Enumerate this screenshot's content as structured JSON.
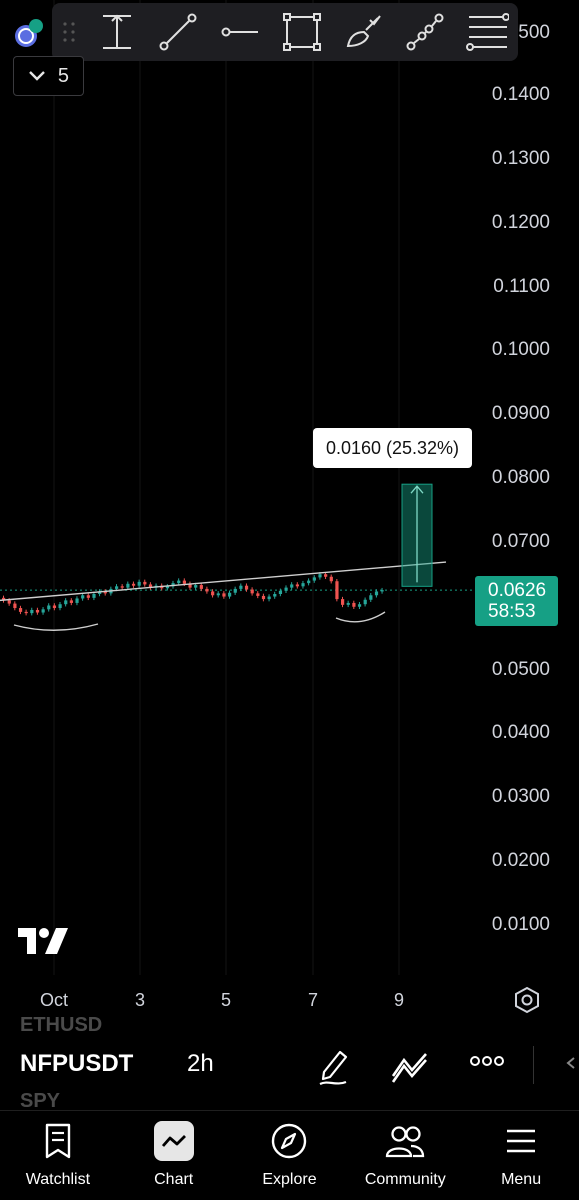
{
  "toolbar": {
    "tools": [
      "measure-tool-icon",
      "trend-line-icon",
      "horizontal-ray-icon",
      "rectangle-icon",
      "brush-icon",
      "path-tool-icon",
      "fib-retracement-icon"
    ]
  },
  "indicators": {
    "count": "5"
  },
  "price_axis": {
    "top_partial": "500",
    "labels": [
      "0.1400",
      "0.1300",
      "0.1200",
      "0.1100",
      "0.1000",
      "0.0900",
      "0.0800",
      "0.0700",
      "0.0500",
      "0.0400",
      "0.0300",
      "0.0200",
      "0.0100"
    ]
  },
  "current_price": {
    "value": "0.0626",
    "countdown": "58:53",
    "color": "#16a085"
  },
  "measure": {
    "label": "0.0160 (25.32%)"
  },
  "time_axis": {
    "labels": [
      "Oct",
      "3",
      "5",
      "7",
      "9"
    ]
  },
  "symbol_bar": {
    "prev_symbol": "ETHUSD",
    "symbol": "NFPUSDT",
    "interval": "2h",
    "next_symbol": "SPY"
  },
  "nav": {
    "items": [
      {
        "label": "Watchlist",
        "icon": "watchlist-icon"
      },
      {
        "label": "Chart",
        "icon": "chart-icon"
      },
      {
        "label": "Explore",
        "icon": "compass-icon"
      },
      {
        "label": "Community",
        "icon": "community-icon"
      },
      {
        "label": "Menu",
        "icon": "menu-icon"
      }
    ]
  },
  "colors": {
    "up": "#26a69a",
    "down": "#ef5350",
    "background": "#000000"
  },
  "chart_data": {
    "type": "candlestick",
    "symbol": "NFPUSDT",
    "interval": "2h",
    "x_ticks": [
      "Oct",
      "3",
      "5",
      "7",
      "9"
    ],
    "y_ticks": [
      0.01,
      0.02,
      0.03,
      0.04,
      0.05,
      0.07,
      0.08,
      0.09,
      0.1,
      0.11,
      0.12,
      0.13,
      0.14
    ],
    "ylim": [
      0.0,
      0.15
    ],
    "closes": [
      0.061,
      0.0605,
      0.0598,
      0.0592,
      0.059,
      0.0595,
      0.0591,
      0.0596,
      0.0602,
      0.0598,
      0.0604,
      0.061,
      0.0606,
      0.0613,
      0.0618,
      0.0614,
      0.062,
      0.0624,
      0.0621,
      0.0628,
      0.0632,
      0.063,
      0.0636,
      0.0633,
      0.0639,
      0.0635,
      0.063,
      0.0633,
      0.0629,
      0.0632,
      0.0637,
      0.0641,
      0.0636,
      0.063,
      0.0634,
      0.0628,
      0.0624,
      0.0618,
      0.0621,
      0.0616,
      0.0622,
      0.0628,
      0.0633,
      0.0627,
      0.0621,
      0.0617,
      0.0612,
      0.0616,
      0.062,
      0.0625,
      0.063,
      0.0635,
      0.0632,
      0.0637,
      0.0641,
      0.0646,
      0.0651,
      0.0647,
      0.064,
      0.0612,
      0.0603,
      0.0606,
      0.06,
      0.0604,
      0.0611,
      0.0618,
      0.0624,
      0.0626
    ],
    "trendline": {
      "from": 0.061,
      "to": 0.067
    },
    "measure": {
      "from": 0.0632,
      "to": 0.0792,
      "change": 0.016,
      "percent": 25.32
    },
    "current_price": 0.0626
  }
}
